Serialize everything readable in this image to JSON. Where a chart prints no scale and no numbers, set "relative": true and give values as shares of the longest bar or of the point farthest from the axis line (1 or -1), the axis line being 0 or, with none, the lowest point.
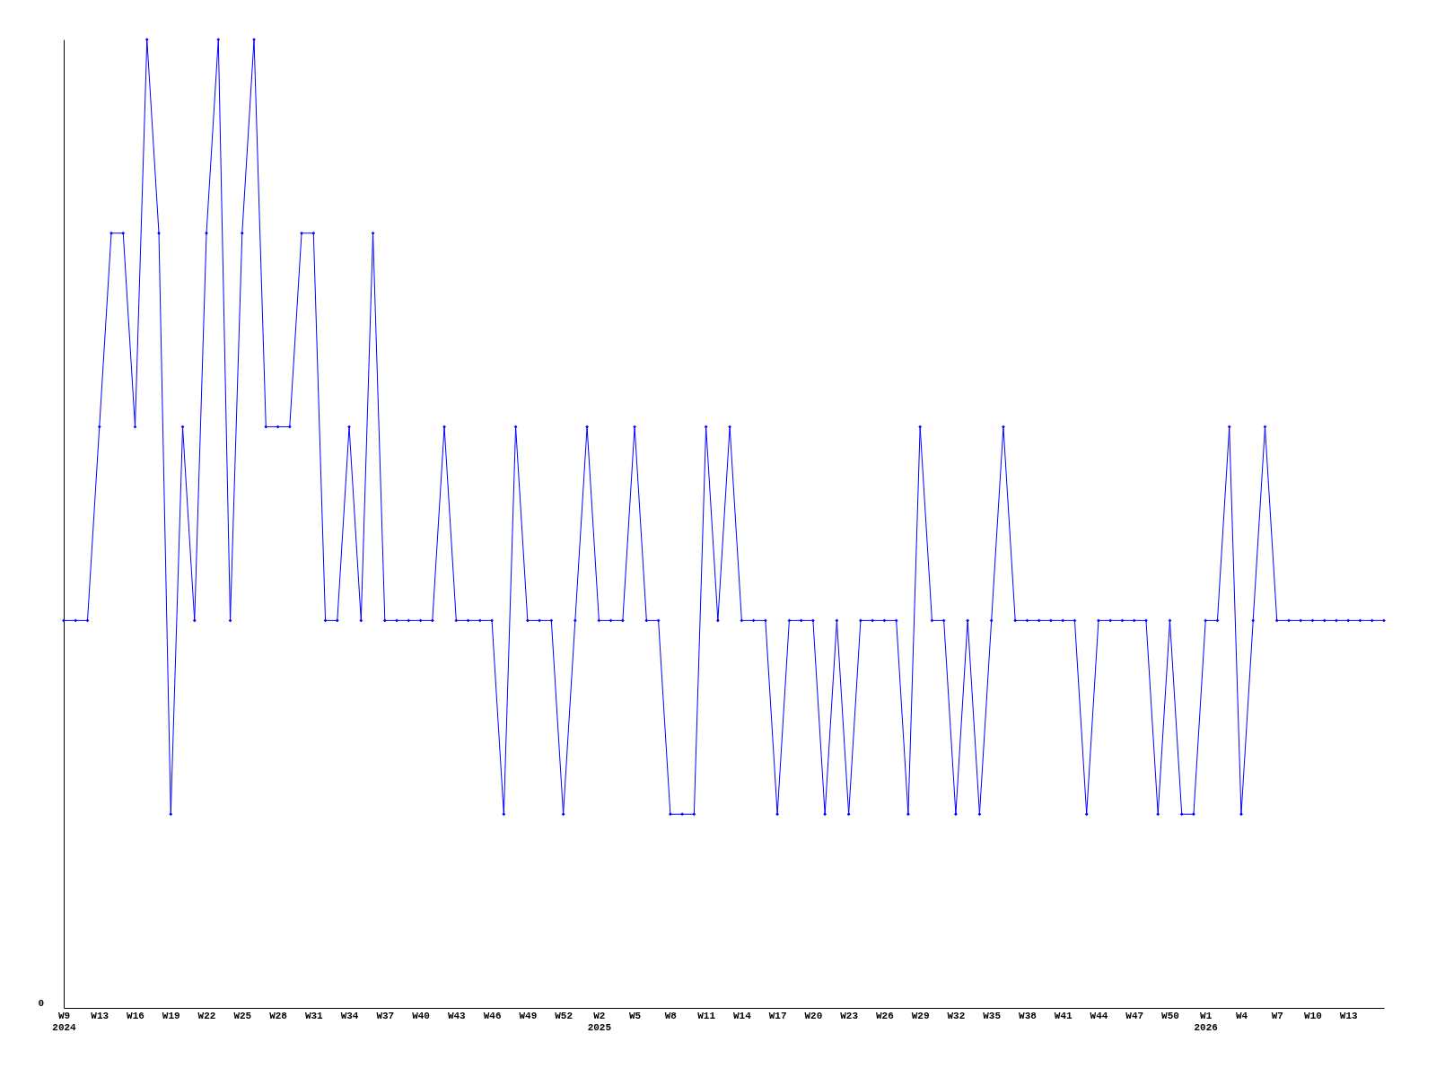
{
  "chart_data": {
    "type": "line",
    "relative": true,
    "grid": false,
    "marker": "diamond",
    "line_style": "solid",
    "categories": [
      "W9\n2024",
      null,
      null,
      "W13",
      null,
      null,
      "W16",
      null,
      null,
      "W19",
      null,
      null,
      "W22",
      null,
      null,
      "W25",
      null,
      null,
      "W28",
      null,
      null,
      "W31",
      null,
      null,
      "W34",
      null,
      null,
      "W37",
      null,
      null,
      "W40",
      null,
      null,
      "W43",
      null,
      null,
      "W46",
      null,
      null,
      "W49",
      null,
      null,
      "W52",
      null,
      null,
      "W2\n2025",
      null,
      null,
      "W5",
      null,
      null,
      "W8",
      null,
      null,
      "W11",
      null,
      null,
      "W14",
      null,
      null,
      "W17",
      null,
      null,
      "W20",
      null,
      null,
      "W23",
      null,
      null,
      "W26",
      null,
      null,
      "W29",
      null,
      null,
      "W32",
      null,
      null,
      "W35",
      null,
      null,
      "W38",
      null,
      null,
      "W41",
      null,
      null,
      "W44",
      null,
      null,
      "W47",
      null,
      null,
      "W50",
      null,
      null,
      "W1\n2026",
      null,
      null,
      "W4",
      null,
      null,
      "W7",
      null,
      null,
      "W10",
      null,
      null,
      "W13",
      null,
      null,
      null
    ],
    "series": [
      {
        "color": "#0000ff",
        "values": [
          0.4,
          0.4,
          0.4,
          0.6,
          0.8,
          0.8,
          0.6,
          1.0,
          0.8,
          0.2,
          0.6,
          0.4,
          0.8,
          1.0,
          0.4,
          0.8,
          1.0,
          0.6,
          0.6,
          0.6,
          0.8,
          0.8,
          0.4,
          0.4,
          0.6,
          0.4,
          0.8,
          0.4,
          0.4,
          0.4,
          0.4,
          0.4,
          0.6,
          0.4,
          0.4,
          0.4,
          0.4,
          0.2,
          0.6,
          0.4,
          0.4,
          0.4,
          0.2,
          0.4,
          0.6,
          0.4,
          0.4,
          0.4,
          0.6,
          0.4,
          0.4,
          0.2,
          0.2,
          0.2,
          0.6,
          0.4,
          0.6,
          0.4,
          0.4,
          0.4,
          0.2,
          0.4,
          0.4,
          0.4,
          0.2,
          0.4,
          0.2,
          0.4,
          0.4,
          0.4,
          0.4,
          0.2,
          0.6,
          0.4,
          0.4,
          0.2,
          0.4,
          0.2,
          0.4,
          0.6,
          0.4,
          0.4,
          0.4,
          0.4,
          0.4,
          0.4,
          0.2,
          0.4,
          0.4,
          0.4,
          0.4,
          0.4,
          0.2,
          0.4,
          0.2,
          0.2,
          0.4,
          0.4,
          0.6,
          0.2,
          0.4,
          0.6,
          0.4,
          0.4,
          0.4,
          0.4,
          0.4,
          0.4,
          0.4,
          0.4,
          0.4,
          0.4
        ]
      }
    ],
    "annotations": [
      "0"
    ]
  }
}
